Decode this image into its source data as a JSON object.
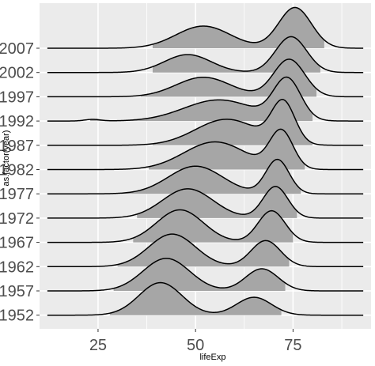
{
  "chart_data": {
    "type": "ridgeline",
    "xlabel": "lifeExp",
    "ylabel": "as.factor(year)",
    "xlim": [
      10,
      95
    ],
    "xticks": [
      25,
      50,
      75
    ],
    "grid": true,
    "colors": {
      "panel": "#ebebeb",
      "grid": "#ffffff",
      "fill": "#a6a6a6",
      "line": "#000000"
    },
    "series": [
      {
        "name": "1952",
        "range": [
          28,
          72
        ],
        "components": [
          {
            "mu": 41,
            "sd": 5.5,
            "w": 1.0
          },
          {
            "mu": 65,
            "sd": 4.5,
            "w": 0.55
          }
        ]
      },
      {
        "name": "1957",
        "range": [
          29,
          73
        ],
        "components": [
          {
            "mu": 42.5,
            "sd": 6,
            "w": 1.0
          },
          {
            "mu": 67,
            "sd": 4.2,
            "w": 0.68
          }
        ]
      },
      {
        "name": "1962",
        "range": [
          30,
          74
        ],
        "components": [
          {
            "mu": 44,
            "sd": 6,
            "w": 1.0
          },
          {
            "mu": 68,
            "sd": 3.8,
            "w": 0.8
          }
        ]
      },
      {
        "name": "1967",
        "range": [
          34,
          75
        ],
        "components": [
          {
            "mu": 46,
            "sd": 6,
            "w": 1.0
          },
          {
            "mu": 69.5,
            "sd": 3.5,
            "w": 0.97
          }
        ]
      },
      {
        "name": "1972",
        "range": [
          35,
          76
        ],
        "components": [
          {
            "mu": 48,
            "sd": 6.5,
            "w": 0.9
          },
          {
            "mu": 70.5,
            "sd": 3.2,
            "w": 0.97
          }
        ]
      },
      {
        "name": "1977",
        "range": [
          31,
          77
        ],
        "components": [
          {
            "mu": 50,
            "sd": 7,
            "w": 0.85
          },
          {
            "mu": 71,
            "sd": 3,
            "w": 1.05
          }
        ]
      },
      {
        "name": "1982",
        "range": [
          38,
          78
        ],
        "components": [
          {
            "mu": 55,
            "sd": 8,
            "w": 0.85
          },
          {
            "mu": 72,
            "sd": 3,
            "w": 1.15
          }
        ]
      },
      {
        "name": "1987",
        "range": [
          39,
          80
        ],
        "components": [
          {
            "mu": 58,
            "sd": 8,
            "w": 0.8
          },
          {
            "mu": 72.5,
            "sd": 3,
            "w": 1.25
          }
        ]
      },
      {
        "name": "1992",
        "range": [
          23,
          80
        ],
        "components": [
          {
            "mu": 56,
            "sd": 9,
            "w": 0.65
          },
          {
            "mu": 73.5,
            "sd": 3.5,
            "w": 1.25
          },
          {
            "mu": 23.6,
            "sd": 2,
            "w": 0.05
          }
        ]
      },
      {
        "name": "1997",
        "range": [
          36,
          81
        ],
        "components": [
          {
            "mu": 52,
            "sd": 7,
            "w": 0.6
          },
          {
            "mu": 74,
            "sd": 4,
            "w": 1.15
          }
        ]
      },
      {
        "name": "2002",
        "range": [
          39,
          82
        ],
        "components": [
          {
            "mu": 48,
            "sd": 6,
            "w": 0.55
          },
          {
            "mu": 74.5,
            "sd": 4,
            "w": 1.1
          }
        ]
      },
      {
        "name": "2007",
        "range": [
          39,
          83
        ],
        "components": [
          {
            "mu": 52,
            "sd": 7,
            "w": 0.68
          },
          {
            "mu": 75.5,
            "sd": 4.2,
            "w": 1.25
          }
        ]
      }
    ]
  }
}
